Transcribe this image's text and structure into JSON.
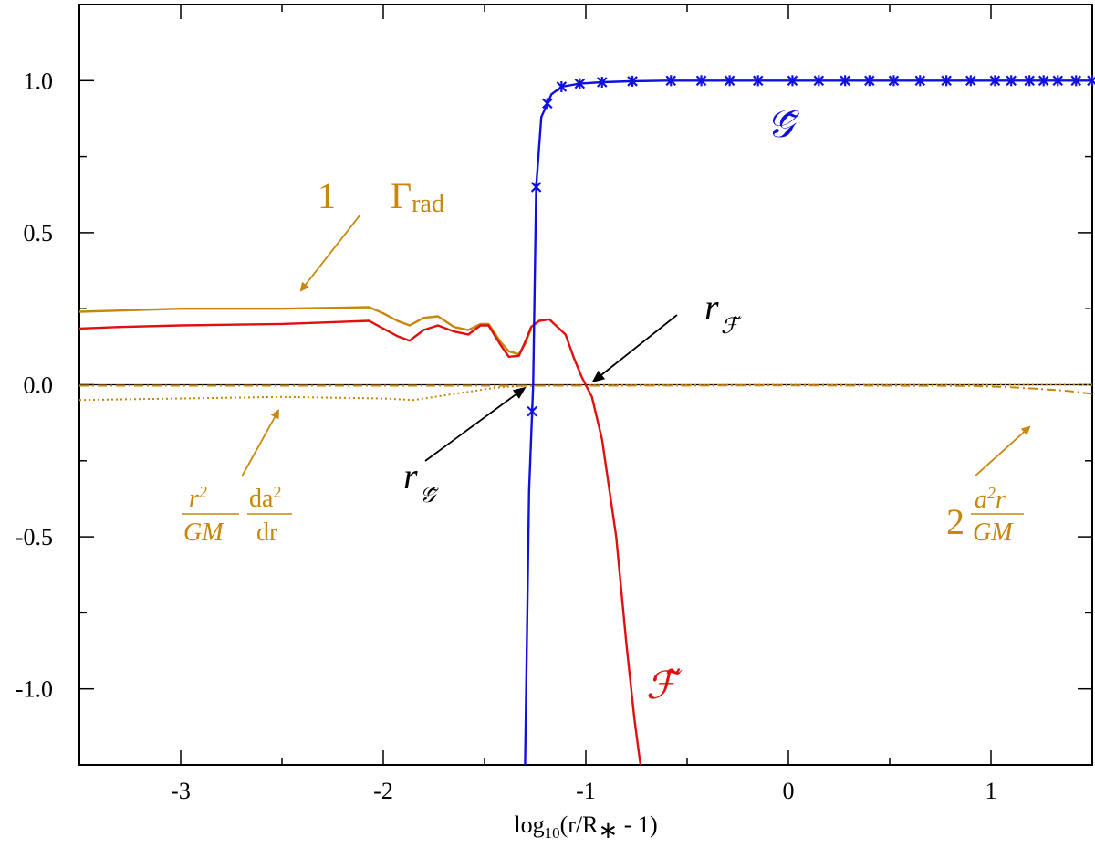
{
  "chart_data": {
    "type": "line",
    "xlabel": "log₁₀(r/R∗ - 1)",
    "ylabel": "",
    "xlim": [
      -3.5,
      1.5
    ],
    "ylim": [
      -1.25,
      1.25
    ],
    "xticks": [
      -3,
      -2,
      -1,
      0,
      1
    ],
    "xtick_labels": [
      "-3",
      "-2",
      "-1",
      "0",
      "1"
    ],
    "yticks": [
      -1.0,
      -0.5,
      0.0,
      0.5,
      1.0
    ],
    "ytick_labels": [
      "-1.0",
      "-0.5",
      "0.0",
      "0.5",
      "1.0"
    ],
    "zero_line": true,
    "grid": false,
    "colors": {
      "G": "#1010e0",
      "F": "#e01010",
      "gamma": "#c8860a"
    },
    "series": [
      {
        "key": "G",
        "name": "G̃",
        "style": "solid-markers",
        "x": [
          -1.3,
          -1.28,
          -1.26,
          -1.245,
          -1.22,
          -1.17,
          -1.12,
          -1.03,
          -0.92,
          -0.78,
          -0.6,
          -0.43,
          -0.28,
          -0.13,
          0.0,
          0.15,
          0.28,
          0.4,
          0.52,
          0.65,
          0.78,
          0.9,
          1.02,
          1.1,
          1.19,
          1.26,
          1.32,
          1.42,
          1.5
        ],
        "y": [
          -1.25,
          -0.35,
          0.0,
          0.65,
          0.88,
          0.955,
          0.98,
          0.99,
          0.995,
          0.998,
          1.0,
          1.0,
          1.0,
          1.0,
          1.0,
          1.0,
          1.0,
          1.0,
          1.0,
          1.0,
          1.0,
          1.0,
          1.0,
          1.0,
          1.0,
          1.0,
          1.0,
          1.0,
          1.0
        ],
        "marker_x": [
          -1.265,
          -1.245,
          -1.19,
          -1.12,
          -1.03,
          -0.92,
          -0.77,
          -0.58,
          -0.43,
          -0.29,
          -0.15,
          0.02,
          0.15,
          0.28,
          0.4,
          0.52,
          0.65,
          0.78,
          0.9,
          1.02,
          1.1,
          1.19,
          1.26,
          1.33,
          1.42,
          1.5
        ]
      },
      {
        "key": "F",
        "name": "F̃",
        "style": "solid",
        "x": [
          -3.5,
          -3.3,
          -3.0,
          -2.5,
          -2.07,
          -2.0,
          -1.93,
          -1.87,
          -1.8,
          -1.73,
          -1.65,
          -1.58,
          -1.52,
          -1.48,
          -1.42,
          -1.38,
          -1.33,
          -1.3,
          -1.27,
          -1.23,
          -1.18,
          -1.1,
          -1.06,
          -1.02,
          -0.97,
          -0.92,
          -0.85,
          -0.8,
          -0.76,
          -0.73
        ],
        "y": [
          0.185,
          0.19,
          0.195,
          0.2,
          0.21,
          0.185,
          0.16,
          0.145,
          0.18,
          0.195,
          0.175,
          0.165,
          0.195,
          0.195,
          0.13,
          0.092,
          0.095,
          0.14,
          0.19,
          0.21,
          0.215,
          0.165,
          0.09,
          0.025,
          -0.04,
          -0.18,
          -0.5,
          -0.85,
          -1.1,
          -1.25
        ]
      },
      {
        "key": "one_minus_gamma",
        "name": "1 Γrad",
        "style": "solid",
        "x": [
          -3.5,
          -3.0,
          -2.5,
          -2.07,
          -2.0,
          -1.93,
          -1.87,
          -1.8,
          -1.73,
          -1.65,
          -1.58,
          -1.52,
          -1.48,
          -1.42,
          -1.38,
          -1.33,
          -1.3,
          -1.27
        ],
        "y": [
          0.24,
          0.25,
          0.25,
          0.255,
          0.235,
          0.21,
          0.195,
          0.22,
          0.225,
          0.19,
          0.18,
          0.2,
          0.2,
          0.14,
          0.11,
          0.1,
          0.135,
          0.185
        ]
      },
      {
        "key": "dadr",
        "name": "r²/GM da²/dr",
        "style": "dotted",
        "x": [
          -3.5,
          -3.0,
          -2.5,
          -2.0,
          -1.85,
          -1.7,
          -1.55,
          -1.45,
          -1.35,
          -1.25,
          -1.0,
          -0.5,
          0.0,
          0.5,
          1.0,
          1.5
        ],
        "y": [
          -0.05,
          -0.045,
          -0.04,
          -0.045,
          -0.05,
          -0.035,
          -0.02,
          -0.01,
          -0.005,
          -0.003,
          -0.002,
          -0.001,
          0.0,
          0.0,
          0.0,
          0.0
        ]
      },
      {
        "key": "two_a2r",
        "name": "2 a²r/GM",
        "style": "dashdot",
        "x": [
          -3.5,
          -2.0,
          -1.0,
          0.0,
          0.5,
          0.9,
          1.1,
          1.25,
          1.38,
          1.5
        ],
        "y": [
          -0.003,
          -0.003,
          -0.003,
          -0.002,
          -0.003,
          -0.004,
          -0.008,
          -0.014,
          -0.02,
          -0.03
        ]
      }
    ],
    "annotations": {
      "one": "1",
      "gamma_base": "Γ",
      "gamma_sub": "rad",
      "g_label": "𝒢̃",
      "f_label": "ℱ̃",
      "r_base": "r",
      "dadr_num_left": "r",
      "dadr_num_left_sup": "2",
      "dadr_den_left": "GM",
      "dadr_num_right": "da",
      "dadr_num_right_sup": "2",
      "dadr_den_right": "dr",
      "two": "2",
      "a2r_num": "a",
      "a2r_num_sup": "2",
      "a2r_num_tail": "r",
      "a2r_den": "GM"
    }
  }
}
